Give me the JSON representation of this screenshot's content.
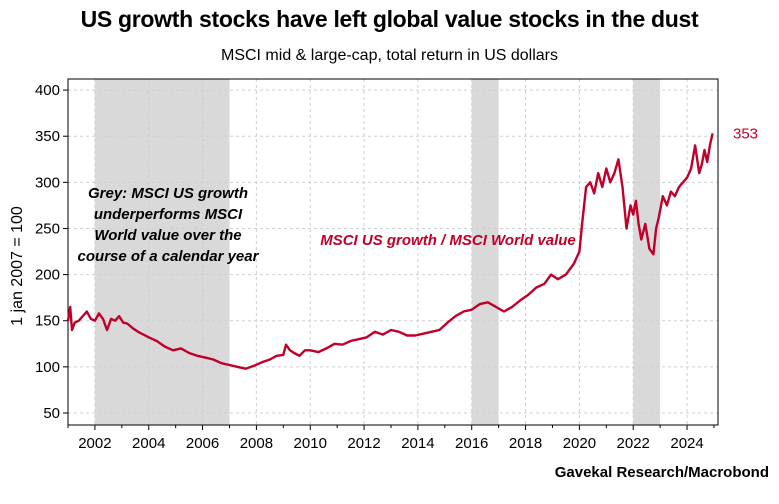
{
  "title": "US growth stocks have left global value stocks in the dust",
  "subtitle": "MSCI mid & large-cap, total return in US dollars",
  "source": "Gavekal Research/Macrobond",
  "colors": {
    "series": "#c0002a",
    "shading": "#d9d9d9",
    "grid": "#cfcfcf"
  },
  "chart_data": {
    "type": "line",
    "ylabel": "1 jan 2007 = 100",
    "xlim": [
      2001.0,
      2025.15
    ],
    "ylim": [
      37,
      412
    ],
    "y_ticks": [
      50,
      100,
      150,
      200,
      250,
      300,
      350,
      400
    ],
    "x_ticks": [
      2002,
      2004,
      2006,
      2008,
      2010,
      2012,
      2014,
      2016,
      2018,
      2020,
      2022,
      2024
    ],
    "grid": true,
    "series": [
      {
        "name": "MSCI US growth / MSCI World value",
        "color": "#c0002a",
        "end_label": "353",
        "x": [
          2001.0,
          2001.08,
          2001.15,
          2001.25,
          2001.4,
          2001.55,
          2001.7,
          2001.85,
          2002.0,
          2002.15,
          2002.3,
          2002.45,
          2002.6,
          2002.75,
          2002.9,
          2003.05,
          2003.2,
          2003.4,
          2003.6,
          2003.8,
          2004.0,
          2004.3,
          2004.6,
          2004.9,
          2005.2,
          2005.5,
          2005.8,
          2006.1,
          2006.4,
          2006.7,
          2007.0,
          2007.3,
          2007.6,
          2007.9,
          2008.2,
          2008.5,
          2008.75,
          2009.0,
          2009.1,
          2009.25,
          2009.4,
          2009.6,
          2009.8,
          2010.0,
          2010.3,
          2010.6,
          2010.9,
          2011.2,
          2011.5,
          2011.8,
          2012.1,
          2012.4,
          2012.7,
          2013.0,
          2013.3,
          2013.6,
          2013.9,
          2014.2,
          2014.5,
          2014.8,
          2015.1,
          2015.4,
          2015.7,
          2016.0,
          2016.3,
          2016.6,
          2016.9,
          2017.2,
          2017.5,
          2017.8,
          2018.1,
          2018.4,
          2018.7,
          2018.95,
          2019.2,
          2019.5,
          2019.8,
          2020.0,
          2020.1,
          2020.25,
          2020.4,
          2020.55,
          2020.7,
          2020.85,
          2021.0,
          2021.15,
          2021.3,
          2021.45,
          2021.6,
          2021.75,
          2021.9,
          2022.0,
          2022.1,
          2022.2,
          2022.3,
          2022.45,
          2022.6,
          2022.75,
          2022.85,
          2022.95,
          2023.1,
          2023.25,
          2023.4,
          2023.55,
          2023.7,
          2023.85,
          2024.0,
          2024.15,
          2024.3,
          2024.45,
          2024.55,
          2024.65,
          2024.75,
          2024.85,
          2024.95
        ],
        "values": [
          150,
          165,
          140,
          148,
          150,
          155,
          160,
          152,
          150,
          158,
          152,
          140,
          152,
          150,
          155,
          148,
          147,
          142,
          138,
          135,
          132,
          128,
          122,
          118,
          120,
          115,
          112,
          110,
          108,
          104,
          102,
          100,
          98,
          101,
          105,
          108,
          112,
          113,
          124,
          118,
          115,
          112,
          118,
          118,
          116,
          120,
          125,
          124,
          128,
          130,
          132,
          138,
          135,
          140,
          138,
          134,
          134,
          136,
          138,
          140,
          148,
          155,
          160,
          162,
          168,
          170,
          165,
          160,
          165,
          172,
          178,
          186,
          190,
          200,
          195,
          200,
          212,
          225,
          255,
          295,
          300,
          288,
          310,
          295,
          315,
          300,
          310,
          325,
          295,
          250,
          275,
          265,
          280,
          255,
          238,
          255,
          228,
          222,
          250,
          262,
          285,
          275,
          290,
          285,
          295,
          300,
          305,
          315,
          340,
          310,
          320,
          335,
          322,
          340,
          353
        ]
      }
    ],
    "shaded_periods": [
      [
        2002.0,
        2007.0
      ],
      [
        2016.0,
        2017.0
      ],
      [
        2022.0,
        2023.0
      ]
    ],
    "annotations": [
      {
        "lines": [
          "Grey: MSCI US growth",
          "underperforms MSCI",
          "World value over the",
          "course of a calendar year"
        ],
        "color": "#000000"
      },
      {
        "lines": [
          "MSCI US growth / MSCI World value"
        ],
        "color": "#c0002a"
      }
    ]
  }
}
